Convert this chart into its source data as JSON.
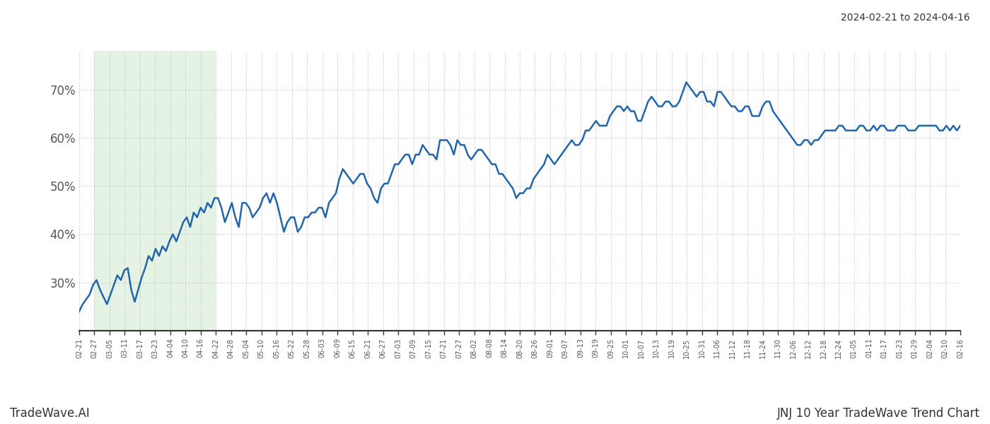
{
  "title_top_right": "2024-02-21 to 2024-04-16",
  "title_bottom_left": "TradeWave.AI",
  "title_bottom_right": "JNJ 10 Year TradeWave Trend Chart",
  "line_color": "#2166ac",
  "line_width": 1.8,
  "shaded_region_color": "#d4ecd4",
  "shaded_region_alpha": 0.6,
  "background_color": "#ffffff",
  "grid_color": "#bbbbbb",
  "ylim": [
    20,
    78
  ],
  "yticks": [
    30,
    40,
    50,
    60,
    70
  ],
  "ytick_labels": [
    "30%",
    "40%",
    "50%",
    "60%",
    "70%"
  ],
  "x_tick_labels": [
    "02-21",
    "02-27",
    "03-05",
    "03-11",
    "03-17",
    "03-23",
    "04-04",
    "04-10",
    "04-16",
    "04-22",
    "04-28",
    "05-04",
    "05-10",
    "05-16",
    "05-22",
    "05-28",
    "06-03",
    "06-09",
    "06-15",
    "06-21",
    "06-27",
    "07-03",
    "07-09",
    "07-15",
    "07-21",
    "07-27",
    "08-02",
    "08-08",
    "08-14",
    "08-20",
    "08-26",
    "09-01",
    "09-07",
    "09-13",
    "09-19",
    "09-25",
    "10-01",
    "10-07",
    "10-13",
    "10-19",
    "10-25",
    "10-31",
    "11-06",
    "11-12",
    "11-18",
    "11-24",
    "11-30",
    "12-06",
    "12-12",
    "12-18",
    "12-24",
    "01-05",
    "01-11",
    "01-17",
    "01-23",
    "01-29",
    "02-04",
    "02-10",
    "02-16"
  ],
  "shaded_x_start_label": "02-27",
  "shaded_x_end_label": "04-22",
  "y_values": [
    24.0,
    25.5,
    26.5,
    27.5,
    29.5,
    30.5,
    28.5,
    27.0,
    25.5,
    27.5,
    29.5,
    31.5,
    30.5,
    32.5,
    33.0,
    28.5,
    26.0,
    28.5,
    31.0,
    33.0,
    35.5,
    34.5,
    37.0,
    35.5,
    37.5,
    36.5,
    38.5,
    40.0,
    38.5,
    40.5,
    42.5,
    43.5,
    41.5,
    44.5,
    43.5,
    45.5,
    44.5,
    46.5,
    45.5,
    47.5,
    47.5,
    45.5,
    42.5,
    44.5,
    46.5,
    43.5,
    41.5,
    46.5,
    46.5,
    45.5,
    43.5,
    44.5,
    45.5,
    47.5,
    48.5,
    46.5,
    48.5,
    46.5,
    43.5,
    40.5,
    42.5,
    43.5,
    43.5,
    40.5,
    41.5,
    43.5,
    43.5,
    44.5,
    44.5,
    45.5,
    45.5,
    43.5,
    46.5,
    47.5,
    48.5,
    51.5,
    53.5,
    52.5,
    51.5,
    50.5,
    51.5,
    52.5,
    52.5,
    50.5,
    49.5,
    47.5,
    46.5,
    49.5,
    50.5,
    50.5,
    52.5,
    54.5,
    54.5,
    55.5,
    56.5,
    56.5,
    54.5,
    56.5,
    56.5,
    58.5,
    57.5,
    56.5,
    56.5,
    55.5,
    59.5,
    59.5,
    59.5,
    58.5,
    56.5,
    59.5,
    58.5,
    58.5,
    56.5,
    55.5,
    56.5,
    57.5,
    57.5,
    56.5,
    55.5,
    54.5,
    54.5,
    52.5,
    52.5,
    51.5,
    50.5,
    49.5,
    47.5,
    48.5,
    48.5,
    49.5,
    49.5,
    51.5,
    52.5,
    53.5,
    54.5,
    56.5,
    55.5,
    54.5,
    55.5,
    56.5,
    57.5,
    58.5,
    59.5,
    58.5,
    58.5,
    59.5,
    61.5,
    61.5,
    62.5,
    63.5,
    62.5,
    62.5,
    62.5,
    64.5,
    65.5,
    66.5,
    66.5,
    65.5,
    66.5,
    65.5,
    65.5,
    63.5,
    63.5,
    65.5,
    67.5,
    68.5,
    67.5,
    66.5,
    66.5,
    67.5,
    67.5,
    66.5,
    66.5,
    67.5,
    69.5,
    71.5,
    70.5,
    69.5,
    68.5,
    69.5,
    69.5,
    67.5,
    67.5,
    66.5,
    69.5,
    69.5,
    68.5,
    67.5,
    66.5,
    66.5,
    65.5,
    65.5,
    66.5,
    66.5,
    64.5,
    64.5,
    64.5,
    66.5,
    67.5,
    67.5,
    65.5,
    64.5,
    63.5,
    62.5,
    61.5,
    60.5,
    59.5,
    58.5,
    58.5,
    59.5,
    59.5,
    58.5,
    59.5,
    59.5,
    60.5,
    61.5,
    61.5,
    61.5,
    61.5,
    62.5,
    62.5,
    61.5,
    61.5,
    61.5,
    61.5,
    62.5,
    62.5,
    61.5,
    61.5,
    62.5,
    61.5,
    62.5,
    62.5,
    61.5,
    61.5,
    61.5,
    62.5,
    62.5,
    62.5,
    61.5,
    61.5,
    61.5,
    62.5,
    62.5,
    62.5,
    62.5,
    62.5,
    62.5,
    61.5,
    61.5,
    62.5,
    61.5,
    62.5,
    61.5,
    62.5
  ]
}
